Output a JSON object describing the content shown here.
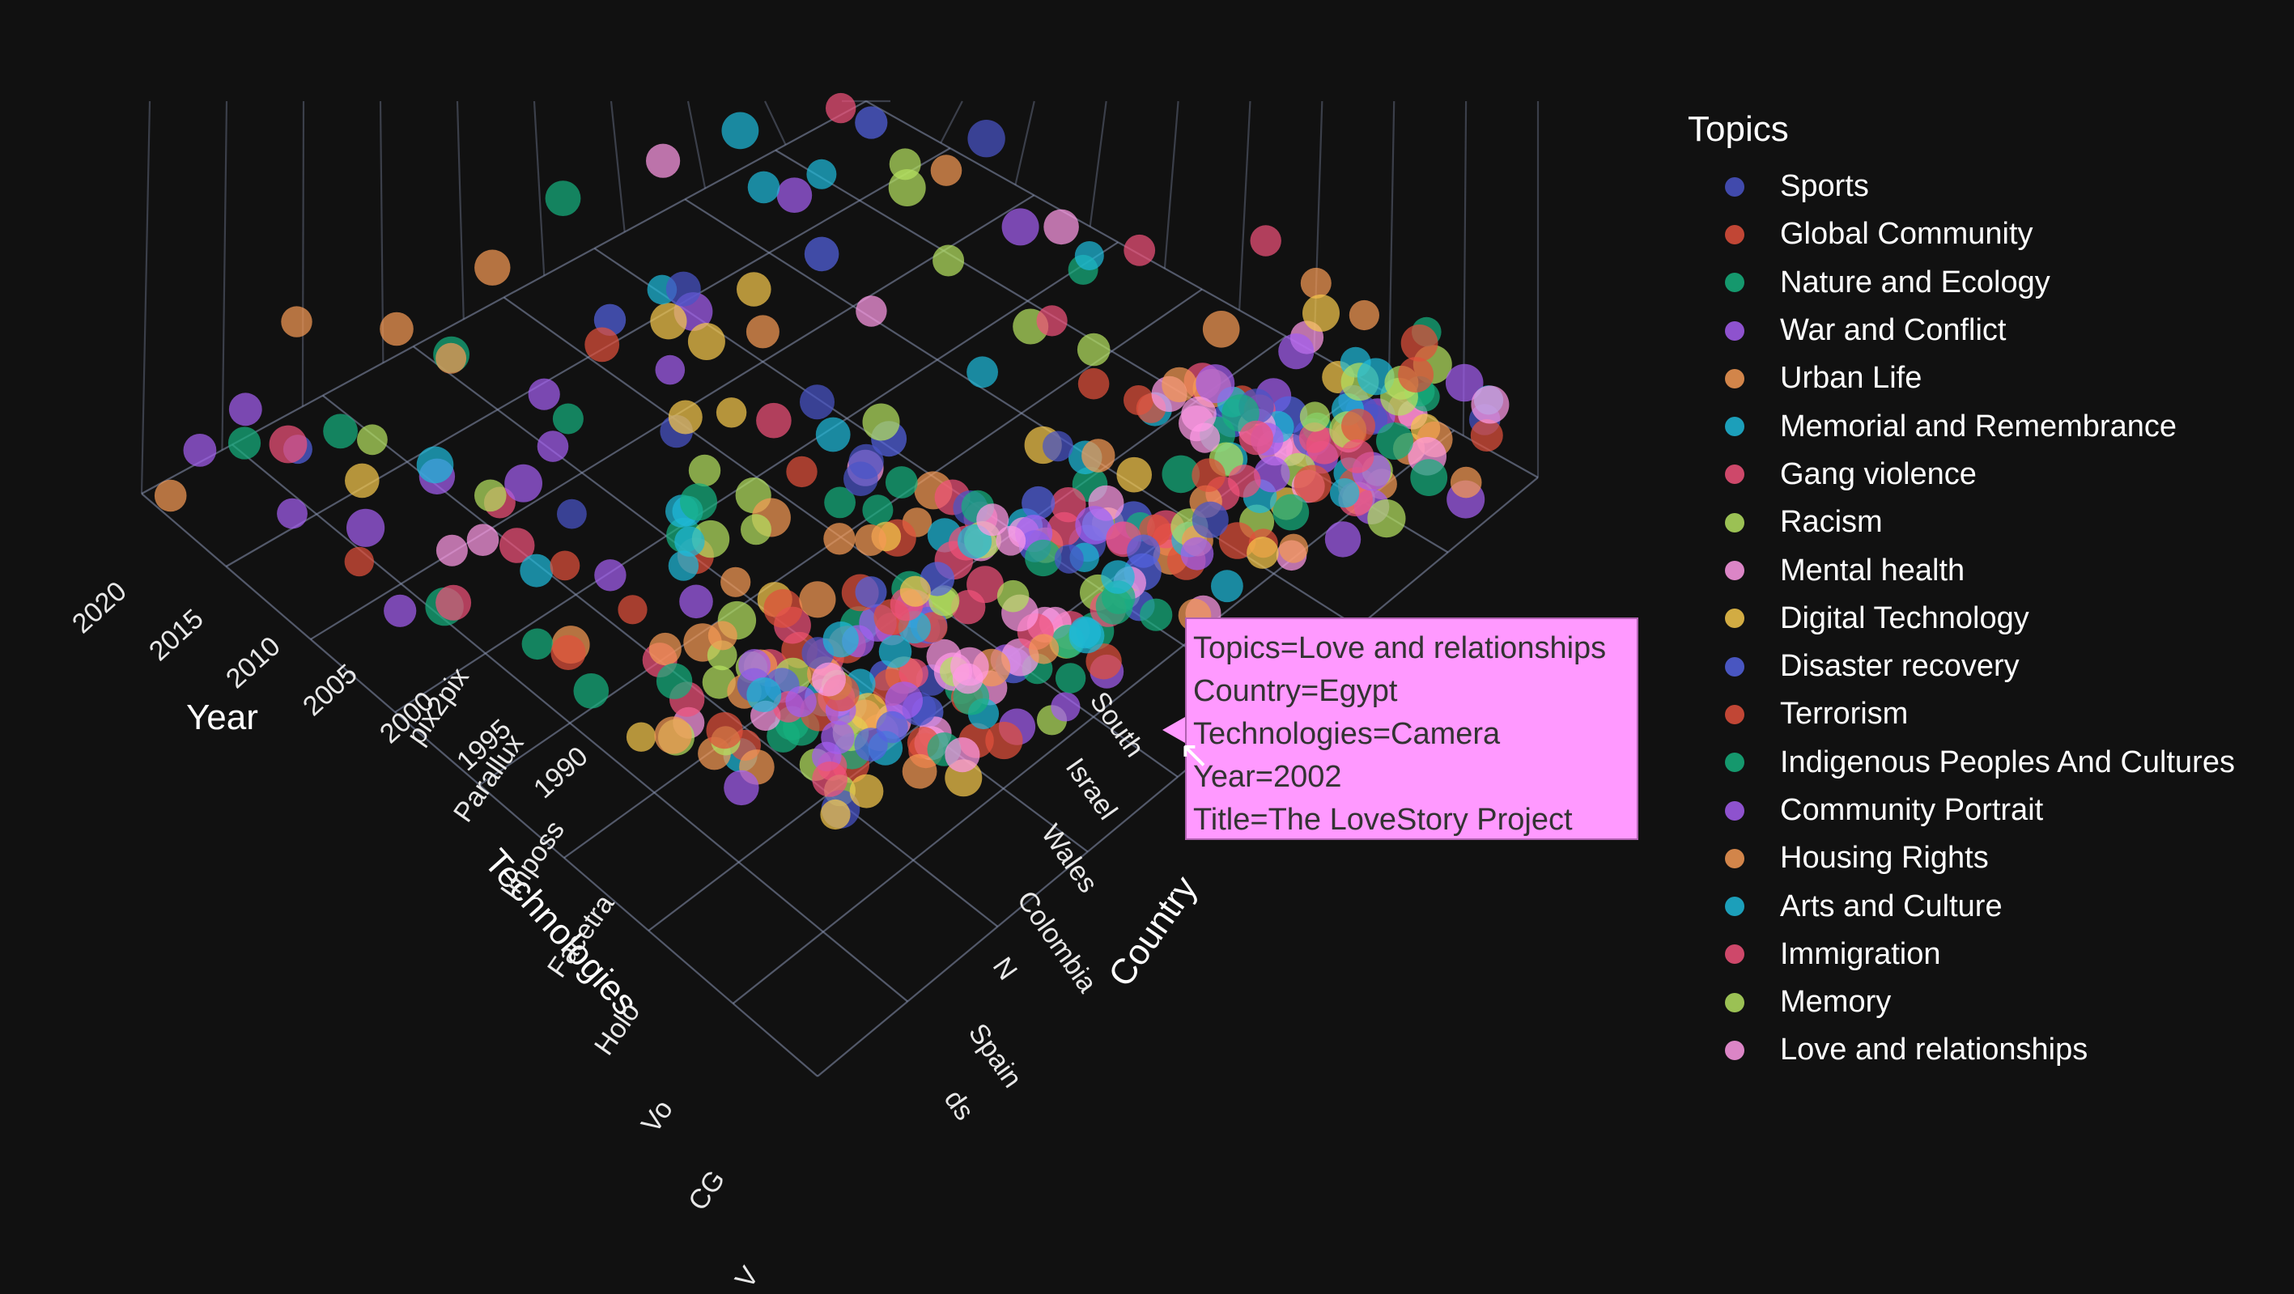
{
  "chart_data": {
    "type": "scatter3d",
    "axes": {
      "x": {
        "title": "Technologies",
        "tick_labels": [
          "pix2pix",
          "Parallux",
          "Imposs",
          "Facetra",
          "Holo",
          "Vo",
          "CG",
          "V"
        ]
      },
      "y": {
        "title": "Country",
        "tick_labels": [
          "South",
          "Israel",
          "Wales",
          "Colombia",
          "N",
          "Spain",
          "ds"
        ]
      },
      "z": {
        "title": "Year",
        "tick_labels": [
          "2020",
          "2015",
          "2010",
          "2005",
          "2000",
          "1995",
          "1990"
        ]
      }
    },
    "legend": {
      "title": "Topics",
      "placement": "right",
      "entries": [
        {
          "name": "Sports",
          "color": "#4a55c8"
        },
        {
          "name": "Global Community",
          "color": "#e0503c"
        },
        {
          "name": "Nature and Ecology",
          "color": "#16b07e"
        },
        {
          "name": "War and Conflict",
          "color": "#a45ef0"
        },
        {
          "name": "Urban Life",
          "color": "#f59a55"
        },
        {
          "name": "Memorial and Remembrance",
          "color": "#1fb8d8"
        },
        {
          "name": "Gang violence",
          "color": "#f0527a"
        },
        {
          "name": "Racism",
          "color": "#b4e060"
        },
        {
          "name": "Mental health",
          "color": "#ff9ae6"
        },
        {
          "name": "Digital Technology",
          "color": "#f5c84c"
        },
        {
          "name": "Disaster recovery",
          "color": "#5363e0"
        },
        {
          "name": "Terrorism",
          "color": "#e0503c"
        },
        {
          "name": "Indigenous Peoples And Cultures",
          "color": "#16b07e"
        },
        {
          "name": "Community Portrait",
          "color": "#a45ef0"
        },
        {
          "name": "Housing Rights",
          "color": "#f59a55"
        },
        {
          "name": "Arts and Culture",
          "color": "#1fb8d8"
        },
        {
          "name": "Immigration",
          "color": "#f0527a"
        },
        {
          "name": "Memory",
          "color": "#b4e060"
        },
        {
          "name": "Love and relationships",
          "color": "#ff9ae6"
        }
      ]
    },
    "hover": {
      "lines": [
        "Topics=Love and relationships",
        "Country=Egypt",
        "Technologies=Camera",
        "Year=2002",
        "Title=The LoveStory Project"
      ]
    }
  }
}
